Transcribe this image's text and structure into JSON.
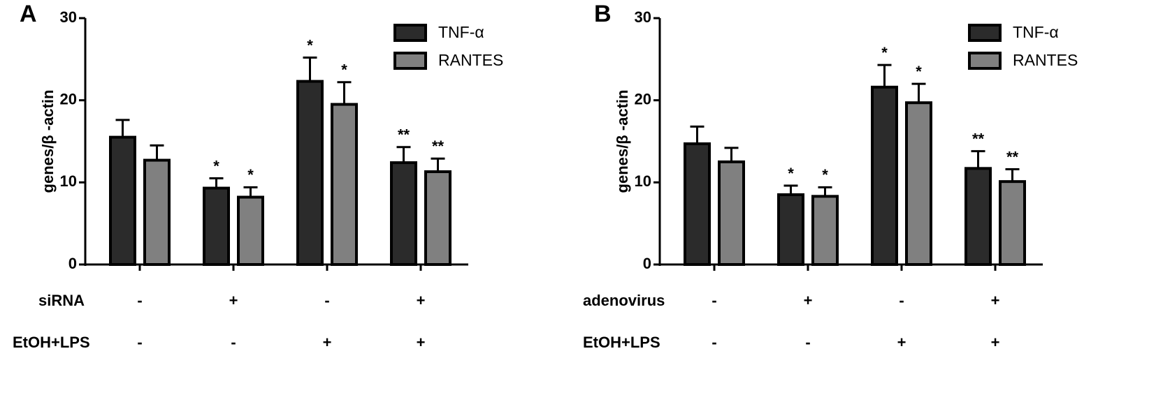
{
  "chart_data": [
    {
      "type": "bar",
      "panel_label": "A",
      "ylabel": "genes/β -actin",
      "ylim": [
        0,
        30
      ],
      "yticks": [
        0,
        10,
        20,
        30
      ],
      "legend": "upper right",
      "series": [
        {
          "name": "TNF-α",
          "color": "#2b2b2b",
          "values": [
            15.5,
            9.3,
            22.3,
            12.4
          ],
          "errors": [
            2.1,
            1.2,
            2.9,
            1.9
          ],
          "annotations": [
            null,
            "*",
            "*",
            "**"
          ]
        },
        {
          "name": "RANTES",
          "color": "#808080",
          "values": [
            12.7,
            8.2,
            19.5,
            11.3
          ],
          "errors": [
            1.8,
            1.2,
            2.7,
            1.6
          ],
          "annotations": [
            null,
            "*",
            "*",
            "**"
          ]
        }
      ],
      "conditions": [
        {
          "name": "siRNA",
          "values": [
            "-",
            "+",
            "-",
            "+"
          ]
        },
        {
          "name": "EtOH+LPS",
          "values": [
            "-",
            "-",
            "+",
            "+"
          ]
        }
      ]
    },
    {
      "type": "bar",
      "panel_label": "B",
      "ylabel": "genes/β -actin",
      "ylim": [
        0,
        30
      ],
      "yticks": [
        0,
        10,
        20,
        30
      ],
      "legend": "upper right",
      "series": [
        {
          "name": "TNF-α",
          "color": "#2b2b2b",
          "values": [
            14.7,
            8.5,
            21.6,
            11.7
          ],
          "errors": [
            2.1,
            1.1,
            2.7,
            2.1
          ],
          "annotations": [
            null,
            "*",
            "*",
            "**"
          ]
        },
        {
          "name": "RANTES",
          "color": "#808080",
          "values": [
            12.5,
            8.3,
            19.7,
            10.1
          ],
          "errors": [
            1.7,
            1.1,
            2.3,
            1.5
          ],
          "annotations": [
            null,
            "*",
            "*",
            "**"
          ]
        }
      ],
      "conditions": [
        {
          "name": "adenovirus",
          "values": [
            "-",
            "+",
            "-",
            "+"
          ]
        },
        {
          "name": "EtOH+LPS",
          "values": [
            "-",
            "-",
            "+",
            "+"
          ]
        }
      ]
    }
  ]
}
